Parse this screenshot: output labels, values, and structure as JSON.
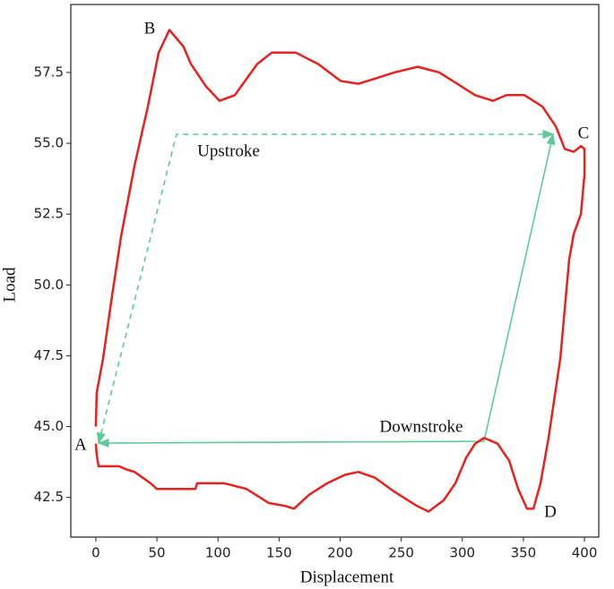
{
  "chart_data": {
    "type": "line",
    "xlabel": "Displacement",
    "ylabel": "Load",
    "annotations": [
      "A",
      "B",
      "C",
      "D",
      "Upstroke",
      "Downstroke"
    ],
    "color": "#e8201e",
    "x": [
      0,
      0.7,
      5.9,
      13.2,
      20.6,
      31.6,
      42.6,
      51.4,
      60.2,
      71.9,
      77.8,
      90.3,
      101.3,
      113.8,
      132.1,
      143.9,
      163.7,
      182.0,
      200.4,
      215.0,
      229.7,
      244.4,
      263.5,
      281.1,
      310.5,
      325.1,
      336.1,
      350.8,
      365.5,
      376.5,
      383.9,
      391.2,
      397.1,
      400,
      400,
      397.1,
      391.2,
      387.5,
      380.2,
      370.6,
      364.0,
      358.2,
      353.0,
      345.7,
      338.3,
      328.8,
      317.8,
      310.5,
      303.1,
      294.3,
      284.8,
      272.3,
      262.8,
      244.4,
      228.3,
      215.0,
      204.0,
      189.4,
      174.7,
      162.2,
      154.9,
      141.7,
      123.3,
      105.0,
      82.9,
      81.5,
      49.9,
      44.8,
      31.6,
      24.2,
      19.1,
      2.2,
      0.7,
      0
    ],
    "values": [
      45.0,
      46.2,
      47.4,
      49.6,
      51.7,
      54.2,
      56.3,
      58.2,
      59.0,
      58.4,
      57.8,
      57.0,
      56.5,
      56.7,
      57.8,
      58.2,
      58.2,
      57.8,
      57.2,
      57.1,
      57.3,
      57.5,
      57.7,
      57.5,
      56.7,
      56.5,
      56.7,
      56.7,
      56.3,
      55.6,
      54.8,
      54.7,
      54.9,
      54.8,
      53.9,
      52.5,
      51.8,
      50.9,
      47.4,
      44.6,
      43.0,
      42.1,
      42.1,
      42.8,
      43.8,
      44.4,
      44.6,
      44.4,
      43.9,
      43.0,
      42.4,
      42.0,
      42.2,
      42.7,
      43.2,
      43.4,
      43.3,
      43.0,
      42.6,
      42.1,
      42.2,
      42.3,
      42.8,
      43.0,
      43.0,
      42.8,
      42.8,
      43.0,
      43.4,
      43.5,
      43.6,
      43.6,
      44.0,
      44.4
    ],
    "xlim": [
      -20.5,
      411.7
    ],
    "ylim": [
      41.1,
      59.9
    ],
    "xticks": [
      0,
      50,
      100,
      150,
      200,
      250,
      300,
      350,
      400
    ],
    "yticks": [
      42.5,
      {
        "value": 45,
        "label": "45.0"
      },
      47.5,
      {
        "value": 50,
        "label": "50.0"
      },
      52.5,
      {
        "value": 55,
        "label": "55.0"
      },
      57.5
    ]
  }
}
